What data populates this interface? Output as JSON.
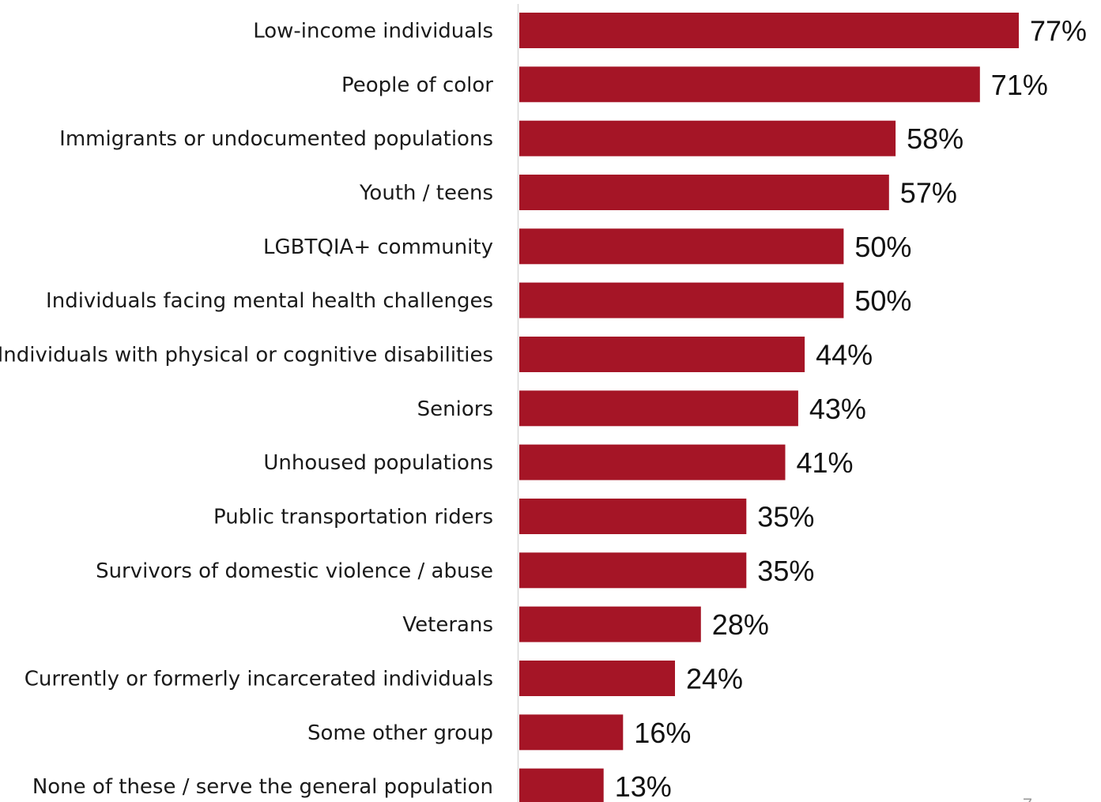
{
  "chart_data": {
    "type": "bar",
    "orientation": "horizontal",
    "title": "",
    "xlabel": "",
    "ylabel": "",
    "xlim": [
      0,
      77
    ],
    "grid": false,
    "legend": "none",
    "bar_color": "#A51526",
    "value_suffix": "%",
    "categories": [
      "Low-income individuals",
      "People of color",
      "Immigrants or undocumented populations",
      "Youth / teens",
      "LGBTQIA+ community",
      "Individuals facing mental health challenges",
      "Individuals with physical or cognitive disabilities",
      "Seniors",
      "Unhoused populations",
      "Public transportation riders",
      "Survivors of domestic violence / abuse",
      "Veterans",
      "Currently or formerly incarcerated individuals",
      "Some other group",
      "None of these / serve the general population"
    ],
    "values": [
      77,
      71,
      58,
      57,
      50,
      50,
      44,
      43,
      41,
      35,
      35,
      28,
      24,
      16,
      13
    ]
  },
  "page_number": "7"
}
